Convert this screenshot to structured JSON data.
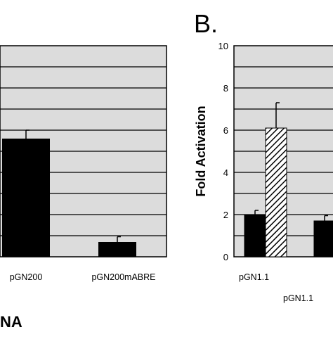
{
  "panels": {
    "A": {
      "footer_text": "NA"
    },
    "B": {
      "letter": "B."
    }
  },
  "colors": {
    "plot_background": "#dcdcdc",
    "bar_fill": "#000000",
    "hatch_fill": "#000000",
    "axis": "#000000"
  },
  "chart_data": [
    {
      "panel": "A",
      "type": "bar",
      "title": "",
      "xlabel": "",
      "ylabel": "",
      "categories": [
        "pGN200",
        "pGN200mABRE"
      ],
      "values": [
        5.6,
        0.7
      ],
      "errors": [
        0.4,
        0.25
      ],
      "ylim": [
        0,
        10
      ],
      "yticks": [],
      "grid": true,
      "notes": "left panel cropped; y-axis tick labels not visible"
    },
    {
      "panel": "B",
      "type": "bar",
      "title": "",
      "xlabel": "",
      "ylabel": "Fold Activation",
      "ylim": [
        0,
        10
      ],
      "yticks": [
        "0",
        "2",
        "4",
        "6",
        "8",
        "10"
      ],
      "grid": true,
      "categories": [
        "pGN1.1",
        "pGN1.1"
      ],
      "series": [
        {
          "values": [
            2.0,
            1.7
          ],
          "errors": [
            0.2,
            0.25
          ],
          "pattern": "solid"
        },
        {
          "values": [
            6.1,
            null
          ],
          "errors": [
            1.2,
            null
          ],
          "pattern": "hatched"
        }
      ],
      "notes": "right panel cropped; second category label partially visible"
    }
  ]
}
